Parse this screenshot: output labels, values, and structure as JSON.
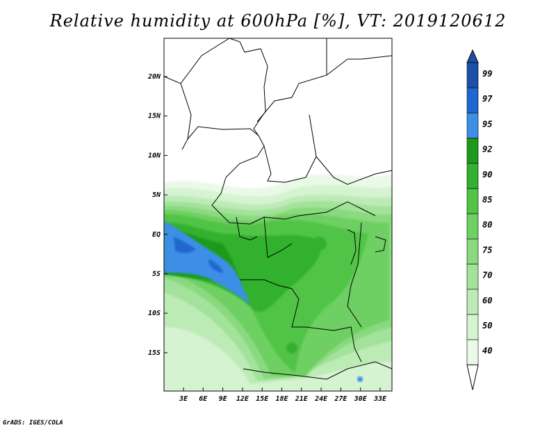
{
  "title": "Relative humidity at 600hPa [%], VT: 2019120612",
  "credit": "GrADS: IGES/COLA",
  "map": {
    "lat_labels": [
      "20N",
      "15N",
      "10N",
      "5N",
      "EQ",
      "5S",
      "10S",
      "15S"
    ],
    "lon_labels": [
      "3E",
      "6E",
      "9E",
      "12E",
      "15E",
      "18E",
      "21E",
      "24E",
      "27E",
      "30E",
      "33E"
    ],
    "colors": {
      "c40": "#eaf9e8",
      "c50": "#d5f3d1",
      "c60": "#bdebb6",
      "c70": "#a3e29a",
      "c75": "#8ad97f",
      "c80": "#6ecf62",
      "c85": "#51c447",
      "c90": "#33b12e",
      "c92": "#1c9a1c",
      "c95": "#3d8fe6",
      "c97": "#2066cf",
      "c99": "#1b4fa8"
    }
  },
  "colorbar": {
    "labels": [
      "99",
      "97",
      "95",
      "92",
      "90",
      "85",
      "80",
      "75",
      "70",
      "60",
      "50",
      "40"
    ],
    "colors": [
      "#1b4fa8",
      "#2066cf",
      "#3d8fe6",
      "#1c9a1c",
      "#33b12e",
      "#51c447",
      "#6ecf62",
      "#8ad97f",
      "#a3e29a",
      "#bdebb6",
      "#d5f3d1",
      "#eaf9e8",
      "#ffffff"
    ]
  }
}
